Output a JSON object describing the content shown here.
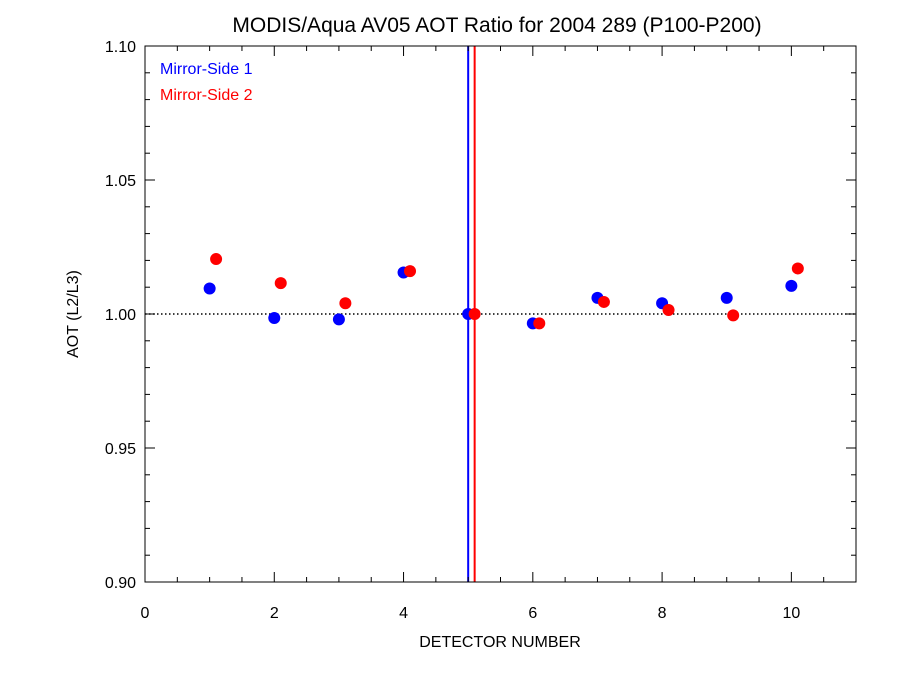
{
  "chart_data": {
    "type": "scatter",
    "title": "MODIS/Aqua AV05 AOT Ratio for 2004 289 (P100-P200)",
    "xlabel": "DETECTOR NUMBER",
    "ylabel": "AOT (L2/L3)",
    "xlim": [
      0,
      11
    ],
    "ylim": [
      0.9,
      1.1
    ],
    "x_ticks": [
      0,
      2,
      4,
      6,
      8,
      10
    ],
    "x_tick_labels": [
      "0",
      "2",
      "4",
      "6",
      "8",
      "10"
    ],
    "y_ticks": [
      0.9,
      0.95,
      1.0,
      1.05,
      1.1
    ],
    "y_tick_labels": [
      "0.90",
      "0.95",
      "1.00",
      "1.05",
      "1.10"
    ],
    "reference_line": {
      "y": 1.0,
      "style": "dotted",
      "color": "#000000"
    },
    "vertical_lines": [
      {
        "x": 5.0,
        "color": "#0000ff"
      },
      {
        "x": 5.1,
        "color": "#ff0000"
      }
    ],
    "legend": {
      "position": "top-left"
    },
    "series": [
      {
        "name": "Mirror-Side 1",
        "color": "#0000ff",
        "x": [
          1,
          2,
          3,
          4,
          5,
          6,
          7,
          8,
          9,
          10
        ],
        "y": [
          1.0095,
          0.9985,
          0.998,
          1.0155,
          1.0,
          0.9965,
          1.006,
          1.004,
          1.006,
          1.0105
        ]
      },
      {
        "name": "Mirror-Side 2",
        "color": "#ff0000",
        "x": [
          1.1,
          2.1,
          3.1,
          4.1,
          5.1,
          6.1,
          7.1,
          8.1,
          9.1,
          10.1
        ],
        "y": [
          1.0205,
          1.0115,
          1.004,
          1.016,
          1.0,
          0.9965,
          1.0045,
          1.0015,
          0.9995,
          1.017
        ]
      }
    ]
  }
}
